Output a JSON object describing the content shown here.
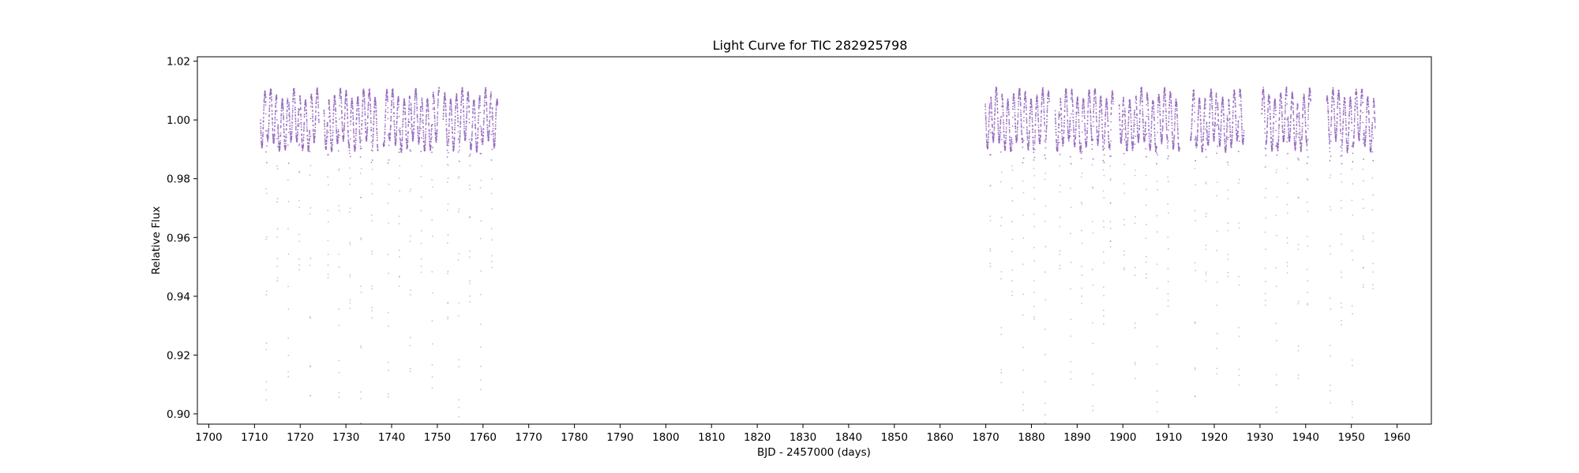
{
  "chart_data": {
    "type": "scatter",
    "title": "Light Curve for TIC 282925798",
    "xlabel": "BJD - 2457000 (days)",
    "ylabel": "Relative Flux",
    "xlim": [
      1697.5,
      1967.5
    ],
    "ylim": [
      0.8965,
      1.0215
    ],
    "xticks": [
      1700,
      1710,
      1720,
      1730,
      1740,
      1750,
      1760,
      1770,
      1780,
      1790,
      1800,
      1810,
      1820,
      1830,
      1840,
      1850,
      1860,
      1870,
      1880,
      1890,
      1900,
      1910,
      1920,
      1930,
      1940,
      1950,
      1960
    ],
    "yticks": [
      0.9,
      0.92,
      0.94,
      0.96,
      0.98,
      1.0,
      1.02
    ],
    "grid": false,
    "color": "#9467bd",
    "segments": [
      [
        1711.3,
        1724.1
      ],
      [
        1725.2,
        1737.0
      ],
      [
        1738.2,
        1750.4
      ],
      [
        1751.3,
        1763.2
      ],
      [
        1869.9,
        1883.9
      ],
      [
        1885.2,
        1897.9
      ],
      [
        1899.2,
        1912.4
      ],
      [
        1914.8,
        1926.5
      ],
      [
        1930.4,
        1941.1
      ],
      [
        1944.6,
        1955.2
      ]
    ],
    "modulation": {
      "baseline": 1.0,
      "amplitude": 0.0085,
      "period_days": 1.27
    },
    "eclipses": [
      {
        "time": 1712.6,
        "depth": 0.903
      },
      {
        "time": 1715.0,
        "depth": 0.941
      },
      {
        "time": 1717.4,
        "depth": 0.903
      },
      {
        "time": 1719.8,
        "depth": 0.941
      },
      {
        "time": 1722.2,
        "depth": 0.903
      },
      {
        "time": 1726.1,
        "depth": 0.941
      },
      {
        "time": 1728.5,
        "depth": 0.903
      },
      {
        "time": 1730.9,
        "depth": 0.941
      },
      {
        "time": 1733.3,
        "depth": 0.903
      },
      {
        "time": 1735.7,
        "depth": 0.94
      },
      {
        "time": 1739.3,
        "depth": 0.905
      },
      {
        "time": 1741.7,
        "depth": 0.941
      },
      {
        "time": 1744.1,
        "depth": 0.905
      },
      {
        "time": 1746.5,
        "depth": 0.941
      },
      {
        "time": 1748.9,
        "depth": 0.905
      },
      {
        "time": 1752.3,
        "depth": 0.941
      },
      {
        "time": 1754.7,
        "depth": 0.905
      },
      {
        "time": 1757.1,
        "depth": 0.941
      },
      {
        "time": 1759.5,
        "depth": 0.905
      },
      {
        "time": 1761.9,
        "depth": 0.941
      },
      {
        "time": 1871.0,
        "depth": 0.941
      },
      {
        "time": 1873.4,
        "depth": 0.904
      },
      {
        "time": 1875.8,
        "depth": 0.941
      },
      {
        "time": 1878.2,
        "depth": 0.904
      },
      {
        "time": 1880.6,
        "depth": 0.942
      },
      {
        "time": 1883.0,
        "depth": 0.902
      },
      {
        "time": 1886.2,
        "depth": 0.942
      },
      {
        "time": 1888.6,
        "depth": 0.905
      },
      {
        "time": 1891.0,
        "depth": 0.941
      },
      {
        "time": 1893.4,
        "depth": 0.905
      },
      {
        "time": 1895.8,
        "depth": 0.941
      },
      {
        "time": 1897.3,
        "depth": 0.96
      },
      {
        "time": 1900.3,
        "depth": 0.941
      },
      {
        "time": 1902.7,
        "depth": 0.904
      },
      {
        "time": 1905.1,
        "depth": 0.941
      },
      {
        "time": 1907.5,
        "depth": 0.904
      },
      {
        "time": 1909.9,
        "depth": 0.941
      },
      {
        "time": 1915.8,
        "depth": 0.904
      },
      {
        "time": 1918.2,
        "depth": 0.941
      },
      {
        "time": 1920.6,
        "depth": 0.904
      },
      {
        "time": 1923.0,
        "depth": 0.941
      },
      {
        "time": 1925.4,
        "depth": 0.904
      },
      {
        "time": 1931.2,
        "depth": 0.941
      },
      {
        "time": 1933.6,
        "depth": 0.903
      },
      {
        "time": 1936.0,
        "depth": 0.941
      },
      {
        "time": 1938.4,
        "depth": 0.905
      },
      {
        "time": 1940.4,
        "depth": 0.941
      },
      {
        "time": 1945.4,
        "depth": 0.911
      },
      {
        "time": 1947.8,
        "depth": 0.938
      },
      {
        "time": 1950.2,
        "depth": 0.904
      },
      {
        "time": 1952.6,
        "depth": 0.941
      },
      {
        "time": 1954.7,
        "depth": 0.938
      }
    ]
  }
}
